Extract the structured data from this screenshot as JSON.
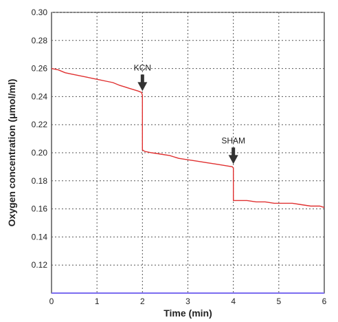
{
  "chart_data": {
    "type": "line",
    "title": "",
    "xlabel": "Time (min)",
    "ylabel": "Oxygen concentration (μmol/ml)",
    "xlim": [
      0,
      6
    ],
    "ylim": [
      0.1,
      0.3
    ],
    "xticks": [
      "0",
      "1",
      "2",
      "3",
      "4",
      "5",
      "6"
    ],
    "yticks": [
      "0.30",
      "0.28",
      "0.26",
      "0.24",
      "0.22",
      "0.20",
      "0.18",
      "0.16",
      "0.14",
      "0.12"
    ],
    "grid": true,
    "legend": "none",
    "colors": {
      "series": "#e03030",
      "baseline": "#7a6cf0",
      "arrow": "#333333"
    },
    "series": [
      {
        "x": [
          0,
          0.15,
          0.3,
          0.45,
          0.6,
          0.75,
          0.9,
          1.05,
          1.2,
          1.35,
          1.5,
          1.6,
          1.7,
          1.8,
          1.9,
          1.98,
          2.0,
          2.0,
          2.05,
          2.2,
          2.4,
          2.6,
          2.8,
          3.0,
          3.2,
          3.4,
          3.6,
          3.8,
          3.98,
          4.0,
          4.0,
          4.1,
          4.3,
          4.5,
          4.7,
          4.9,
          5.1,
          5.3,
          5.5,
          5.7,
          5.9,
          6.0
        ],
        "y": [
          0.26,
          0.259,
          0.257,
          0.256,
          0.255,
          0.254,
          0.253,
          0.252,
          0.251,
          0.25,
          0.248,
          0.247,
          0.246,
          0.245,
          0.244,
          0.243,
          0.241,
          0.202,
          0.201,
          0.2,
          0.199,
          0.198,
          0.196,
          0.195,
          0.194,
          0.193,
          0.192,
          0.191,
          0.19,
          0.189,
          0.166,
          0.166,
          0.166,
          0.165,
          0.165,
          0.164,
          0.164,
          0.164,
          0.163,
          0.162,
          0.162,
          0.161
        ]
      }
    ],
    "baseline": {
      "y": 0.1
    },
    "annotations": [
      {
        "text": "KCN",
        "x": 2.0,
        "y": 0.242
      },
      {
        "text": "SHAM",
        "x": 4.0,
        "y": 0.19
      }
    ]
  }
}
